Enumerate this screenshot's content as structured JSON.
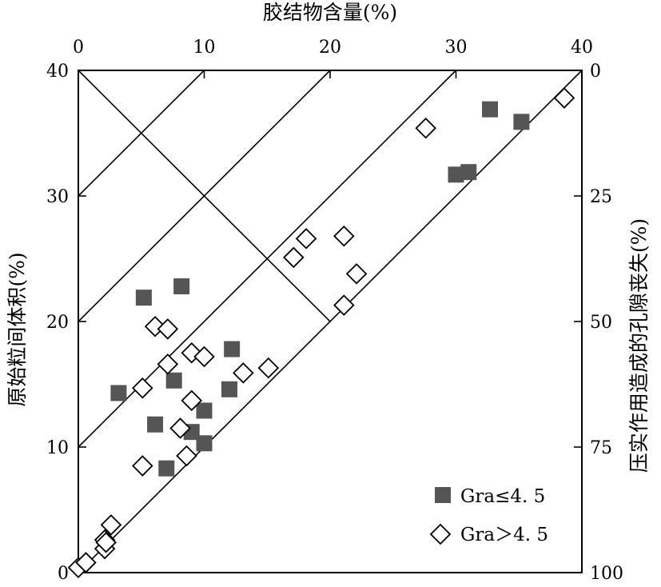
{
  "chart_data": {
    "type": "scatter",
    "title": "",
    "top_axis": {
      "label": "胶结物含量(%)",
      "range": [
        0,
        40
      ],
      "ticks": [
        "0",
        "10",
        "20",
        "30",
        "40"
      ]
    },
    "left_axis": {
      "label": "原始粒间体积(%)",
      "range": [
        0,
        40
      ],
      "ticks": [
        "0",
        "10",
        "20",
        "30",
        "40"
      ]
    },
    "right_axis": {
      "label": "压实作用造成的孔隙丧失(%)",
      "range": [
        100,
        0
      ],
      "ticks": [
        "100",
        "75",
        "50",
        "25",
        "0"
      ]
    },
    "grid": false,
    "legend_position": "bottom-right",
    "reference_lines": "diagonal guide lines",
    "series": [
      {
        "name": "Gra≤4. 5",
        "marker": "filled-square",
        "color": "#555555",
        "points": [
          [
            3.2,
            14.3
          ],
          [
            5.2,
            21.9
          ],
          [
            6.1,
            11.8
          ],
          [
            7.0,
            8.3
          ],
          [
            7.6,
            15.3
          ],
          [
            8.2,
            22.8
          ],
          [
            9.0,
            11.2
          ],
          [
            10.0,
            10.3
          ],
          [
            10.0,
            12.9
          ],
          [
            12.0,
            14.6
          ],
          [
            12.2,
            17.8
          ],
          [
            30.0,
            31.7
          ],
          [
            31.0,
            31.9
          ],
          [
            32.7,
            36.9
          ],
          [
            35.2,
            35.9
          ]
        ]
      },
      {
        "name": "Gra＞4. 5",
        "marker": "open-diamond",
        "color": "#000000",
        "points": [
          [
            0.0,
            0.4
          ],
          [
            0.6,
            0.8
          ],
          [
            2.1,
            1.9
          ],
          [
            2.1,
            2.6
          ],
          [
            2.2,
            2.4
          ],
          [
            2.6,
            3.8
          ],
          [
            5.1,
            8.5
          ],
          [
            5.1,
            14.7
          ],
          [
            6.1,
            19.6
          ],
          [
            7.1,
            16.6
          ],
          [
            7.1,
            19.4
          ],
          [
            8.1,
            11.5
          ],
          [
            8.6,
            9.3
          ],
          [
            9.0,
            17.5
          ],
          [
            9.0,
            13.7
          ],
          [
            10.0,
            17.2
          ],
          [
            13.1,
            15.9
          ],
          [
            15.1,
            16.3
          ],
          [
            17.1,
            25.1
          ],
          [
            18.1,
            26.6
          ],
          [
            21.1,
            21.3
          ],
          [
            21.1,
            26.8
          ],
          [
            22.1,
            23.8
          ],
          [
            27.6,
            35.4
          ],
          [
            38.6,
            37.8
          ]
        ]
      }
    ]
  }
}
